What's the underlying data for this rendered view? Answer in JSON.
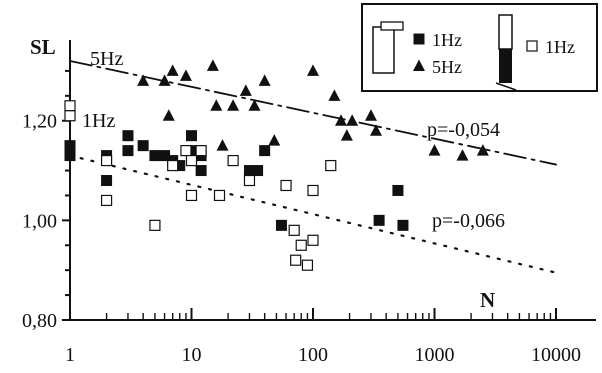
{
  "chart_data": {
    "type": "scatter",
    "title": "",
    "xlabel": "N",
    "ylabel": "SL",
    "x_scale": "log",
    "xlim": [
      1,
      10000
    ],
    "ylim": [
      0.8,
      1.35
    ],
    "x_ticks": [
      {
        "value": 1,
        "label": "1"
      },
      {
        "value": 10,
        "label": "10"
      },
      {
        "value": 100,
        "label": "100"
      },
      {
        "value": 1000,
        "label": "1000"
      },
      {
        "value": 10000,
        "label": "10000"
      }
    ],
    "y_ticks": [
      {
        "value": 0.8,
        "label": "0,80"
      },
      {
        "value": 1.0,
        "label": "1,00"
      },
      {
        "value": 1.2,
        "label": "1,20"
      }
    ],
    "grid": false,
    "legend": {
      "placement": "top-right",
      "entries": [
        {
          "label": "1Hz",
          "marker": "filled-square",
          "group": "left"
        },
        {
          "label": "5Hz",
          "marker": "filled-triangle",
          "group": "left"
        },
        {
          "label": "1Hz",
          "marker": "open-square",
          "group": "right"
        }
      ]
    },
    "annotations": [
      {
        "text": "5Hz",
        "near_series": "5Hz filled triangles",
        "x": 1,
        "y": 1.32
      },
      {
        "text": "1Hz",
        "near_series": "1Hz open squares",
        "x": 1,
        "y": 1.22
      },
      {
        "text": "p=-0,054",
        "x": 700,
        "y": 1.2
      },
      {
        "text": "p=-0,066",
        "x": 700,
        "y": 1.0
      }
    ],
    "trendlines": [
      {
        "style": "dash-dot",
        "from": [
          1,
          1.32
        ],
        "to": [
          10000,
          1.112
        ]
      },
      {
        "style": "dotted",
        "from": [
          1,
          1.13
        ],
        "to": [
          10000,
          0.895
        ]
      }
    ],
    "series": [
      {
        "name": "1Hz",
        "marker": "filled-square",
        "color": "#111111",
        "points": [
          [
            1,
            1.15
          ],
          [
            1,
            1.13
          ],
          [
            2,
            1.13
          ],
          [
            2,
            1.08
          ],
          [
            3,
            1.17
          ],
          [
            3,
            1.14
          ],
          [
            4,
            1.15
          ],
          [
            5,
            1.13
          ],
          [
            6,
            1.13
          ],
          [
            7,
            1.12
          ],
          [
            8,
            1.11
          ],
          [
            10,
            1.17
          ],
          [
            10,
            1.14
          ],
          [
            12,
            1.13
          ],
          [
            12,
            1.1
          ],
          [
            30,
            1.1
          ],
          [
            35,
            1.1
          ],
          [
            40,
            1.14
          ],
          [
            55,
            0.99
          ],
          [
            350,
            1.0
          ],
          [
            500,
            1.06
          ],
          [
            550,
            0.99
          ]
        ]
      },
      {
        "name": "5Hz",
        "marker": "filled-triangle",
        "color": "#111111",
        "points": [
          [
            4,
            1.28
          ],
          [
            6,
            1.28
          ],
          [
            6.5,
            1.21
          ],
          [
            7,
            1.3
          ],
          [
            9,
            1.29
          ],
          [
            15,
            1.31
          ],
          [
            16,
            1.23
          ],
          [
            18,
            1.15
          ],
          [
            22,
            1.23
          ],
          [
            28,
            1.26
          ],
          [
            33,
            1.23
          ],
          [
            40,
            1.28
          ],
          [
            48,
            1.16
          ],
          [
            100,
            1.3
          ],
          [
            150,
            1.25
          ],
          [
            170,
            1.2
          ],
          [
            190,
            1.17
          ],
          [
            210,
            1.2
          ],
          [
            300,
            1.21
          ],
          [
            330,
            1.18
          ],
          [
            1000,
            1.14
          ],
          [
            1700,
            1.13
          ],
          [
            2500,
            1.14
          ]
        ]
      },
      {
        "name": "1Hz",
        "marker": "open-square",
        "color": "#111111",
        "points": [
          [
            1,
            1.23
          ],
          [
            1,
            1.21
          ],
          [
            2,
            1.12
          ],
          [
            2,
            1.04
          ],
          [
            5,
            0.99
          ],
          [
            7,
            1.11
          ],
          [
            9,
            1.14
          ],
          [
            10,
            1.12
          ],
          [
            10,
            1.05
          ],
          [
            12,
            1.14
          ],
          [
            17,
            1.05
          ],
          [
            22,
            1.12
          ],
          [
            30,
            1.08
          ],
          [
            60,
            1.07
          ],
          [
            70,
            0.98
          ],
          [
            72,
            0.92
          ],
          [
            80,
            0.95
          ],
          [
            90,
            0.91
          ],
          [
            100,
            1.06
          ],
          [
            100,
            0.96
          ],
          [
            140,
            1.11
          ]
        ]
      }
    ]
  }
}
